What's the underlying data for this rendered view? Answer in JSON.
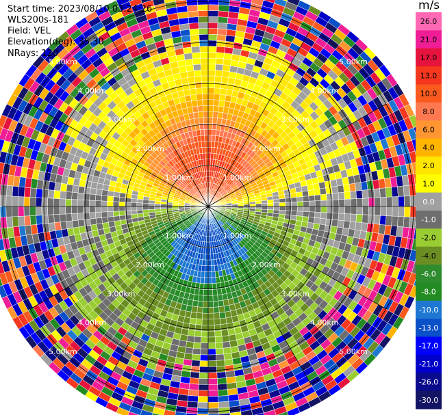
{
  "header": {
    "start_time": "Start time: 2023/08/10 03:24:26",
    "instrument": "WLS200s-181",
    "field": "Field: VEL",
    "elevation": "Elevation(deg): 35.30",
    "nrays": "NRays: 120"
  },
  "colorbar": {
    "unit": "m/s",
    "tick_labels": [
      "26.0",
      "21.0",
      "17.0",
      "13.0",
      "10.0",
      "8.0",
      "6.0",
      "4.0",
      "2.0",
      "1.0",
      "0.0",
      "-1.0",
      "-2.0",
      "-4.0",
      "-6.0",
      "-8.0",
      "-10.0",
      "-13.0",
      "-17.0",
      "-21.0",
      "-26.0",
      "-30.0"
    ],
    "colors": [
      "#ff69b4",
      "#f01e96",
      "#e6143c",
      "#f5371e",
      "#fa5a1e",
      "#ff7850",
      "#ff9632",
      "#ffb400",
      "#ffe600",
      "#ffff00",
      "#a0a0a0",
      "#6e6e6e",
      "#9acd32",
      "#6b8e23",
      "#2e8b2e",
      "#228b22",
      "#1e78d2",
      "#0a50c8",
      "#0000ff",
      "#0000c8",
      "#0a0a8c",
      "#141464"
    ]
  },
  "chart_data": {
    "type": "heatmap",
    "projection": "polar PPI (plan position indicator)",
    "field": "VEL",
    "units": "m/s",
    "elevation_deg": 35.3,
    "n_rays": 120,
    "range_rings_km": [
      1.0,
      2.0,
      3.0,
      4.0,
      5.0
    ],
    "range_ring_labels": [
      "1.00km",
      "2.00km",
      "3.00km",
      "4.00km",
      "5.00km"
    ],
    "max_range_km": 5.5,
    "color_levels": [
      -30,
      -26,
      -21,
      -17,
      -13,
      -10,
      -8,
      -6,
      -4,
      -2,
      -1,
      0,
      1,
      2,
      4,
      6,
      8,
      10,
      13,
      17,
      21,
      26
    ],
    "pattern": "north half positive (receding) with maximum about 13 m/s near 1 km range; south half negative (approaching) with minimum about -10 m/s near 1 km range; noise beyond about 4 km"
  }
}
